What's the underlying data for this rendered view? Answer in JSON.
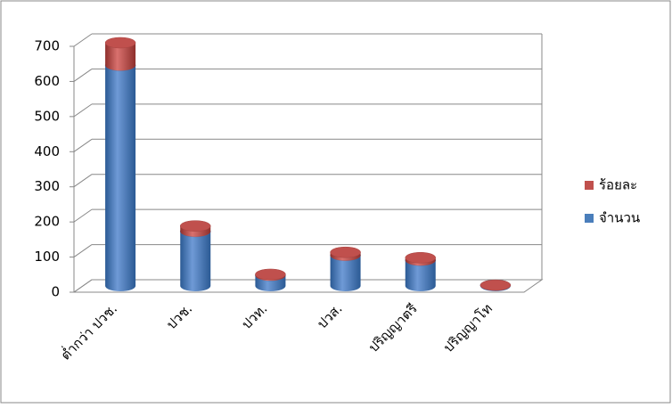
{
  "chart_data": {
    "type": "bar3d-stacked",
    "categories": [
      "ต่ำกว่า ปวช.",
      "ปวช.",
      "ปวท.",
      "ปวส.",
      "ปริญญาตรี",
      "ปริญญาโท"
    ],
    "series": [
      {
        "name": "จำนวน",
        "color": "#4a7ebb",
        "values": [
          628,
          155,
          30,
          87,
          73,
          2
        ]
      },
      {
        "name": "ร้อยละ",
        "color": "#c0504d",
        "values": [
          64.4,
          15.9,
          3.1,
          8.9,
          7.5,
          0.2
        ]
      }
    ],
    "ylim": [
      0,
      700
    ],
    "yticks": [
      0,
      100,
      200,
      300,
      400,
      500,
      600,
      700
    ],
    "grid": true,
    "legend": "right"
  }
}
